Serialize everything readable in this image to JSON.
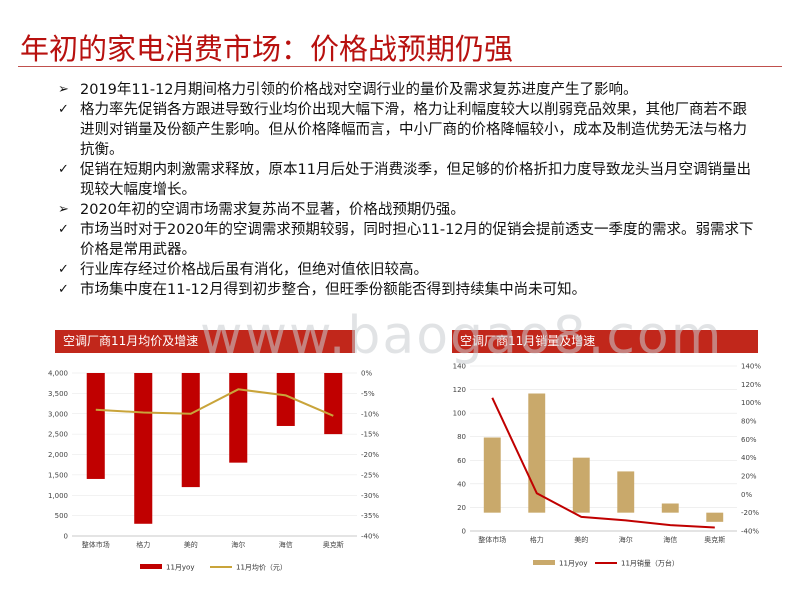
{
  "slide": {
    "title": "年初的家电消费市场：价格战预期仍强",
    "bullets": [
      {
        "marker": "➢",
        "text": "2019年11-12月期间格力引领的价格战对空调行业的量价及需求复苏进度产生了影响。"
      },
      {
        "marker": "✓",
        "text": "格力率先促销各方跟进导致行业均价出现大幅下滑，格力让利幅度较大以削弱竞品效果，其他厂商若不跟进则对销量及份额产生影响。但从价格降幅而言，中小厂商的价格降幅较小，成本及制造优势无法与格力抗衡。"
      },
      {
        "marker": "✓",
        "text": "促销在短期内刺激需求释放，原本11月后处于消费淡季，但足够的价格折扣力度导致龙头当月空调销量出现较大幅度增长。"
      },
      {
        "marker": "➢",
        "text": "2020年初的空调市场需求复苏尚不显著，价格战预期仍强。"
      },
      {
        "marker": "✓",
        "text": "市场当时对于2020年的空调需求预期较弱，同时担心11-12月的促销会提前透支一季度的需求。弱需求下价格是常用武器。"
      },
      {
        "marker": "✓",
        "text": "行业库存经过价格战后虽有消化，但绝对值依旧较高。"
      },
      {
        "marker": "✓",
        "text": "市场集中度在11-12月得到初步整合，但旺季份额能否得到持续集中尚未可知。"
      }
    ],
    "watermark": "www.baogao8.com",
    "colors": {
      "title": "#b8110f",
      "accent": "#c1271b",
      "bar_red": "#c00000",
      "line_gold": "#c9a43a",
      "bar_tan": "#c9a96b",
      "line_red": "#c00000"
    }
  },
  "chart_data": [
    {
      "type": "bar",
      "title": "空调厂商11月均价及增速",
      "categories": [
        "整体市场",
        "格力",
        "美的",
        "海尔",
        "海信",
        "奥克斯"
      ],
      "series": [
        {
          "name": "11月yoy",
          "type": "bar",
          "axis": "right",
          "values": [
            -26,
            -37,
            -28,
            -22,
            -13,
            -15
          ]
        },
        {
          "name": "11月均价（元）",
          "type": "line",
          "axis": "left",
          "values": [
            3100,
            3030,
            3000,
            3600,
            3450,
            2950
          ]
        }
      ],
      "y_left": {
        "ticks": [
          "0",
          "500",
          "1,000",
          "1,500",
          "2,000",
          "2,500",
          "3,000",
          "3,500",
          "4,000"
        ],
        "range": [
          0,
          4000
        ]
      },
      "y_right": {
        "ticks": [
          "0%",
          "-5%",
          "-10%",
          "-15%",
          "-20%",
          "-25%",
          "-30%",
          "-35%",
          "-40%"
        ],
        "range": [
          -40,
          0
        ]
      },
      "legend_position": "bottom"
    },
    {
      "type": "bar",
      "title": "空调厂商11月销量及增速",
      "categories": [
        "整体市场",
        "格力",
        "美的",
        "海尔",
        "海信",
        "奥克斯"
      ],
      "series": [
        {
          "name": "11月yoy",
          "type": "bar",
          "axis": "right",
          "values": [
            62,
            110,
            40,
            25,
            -10,
            -30
          ]
        },
        {
          "name": "11月销量（万台）",
          "type": "line",
          "axis": "left",
          "values": [
            113,
            32,
            12,
            9,
            5,
            3
          ]
        }
      ],
      "y_left": {
        "ticks": [
          "0",
          "20",
          "40",
          "60",
          "80",
          "100",
          "120",
          "140"
        ],
        "range": [
          0,
          140
        ]
      },
      "y_right": {
        "ticks": [
          "140%",
          "120%",
          "100%",
          "80%",
          "60%",
          "40%",
          "20%",
          "0%",
          "-20%",
          "-40%"
        ],
        "range": [
          -40,
          140
        ]
      },
      "legend_position": "bottom"
    }
  ]
}
